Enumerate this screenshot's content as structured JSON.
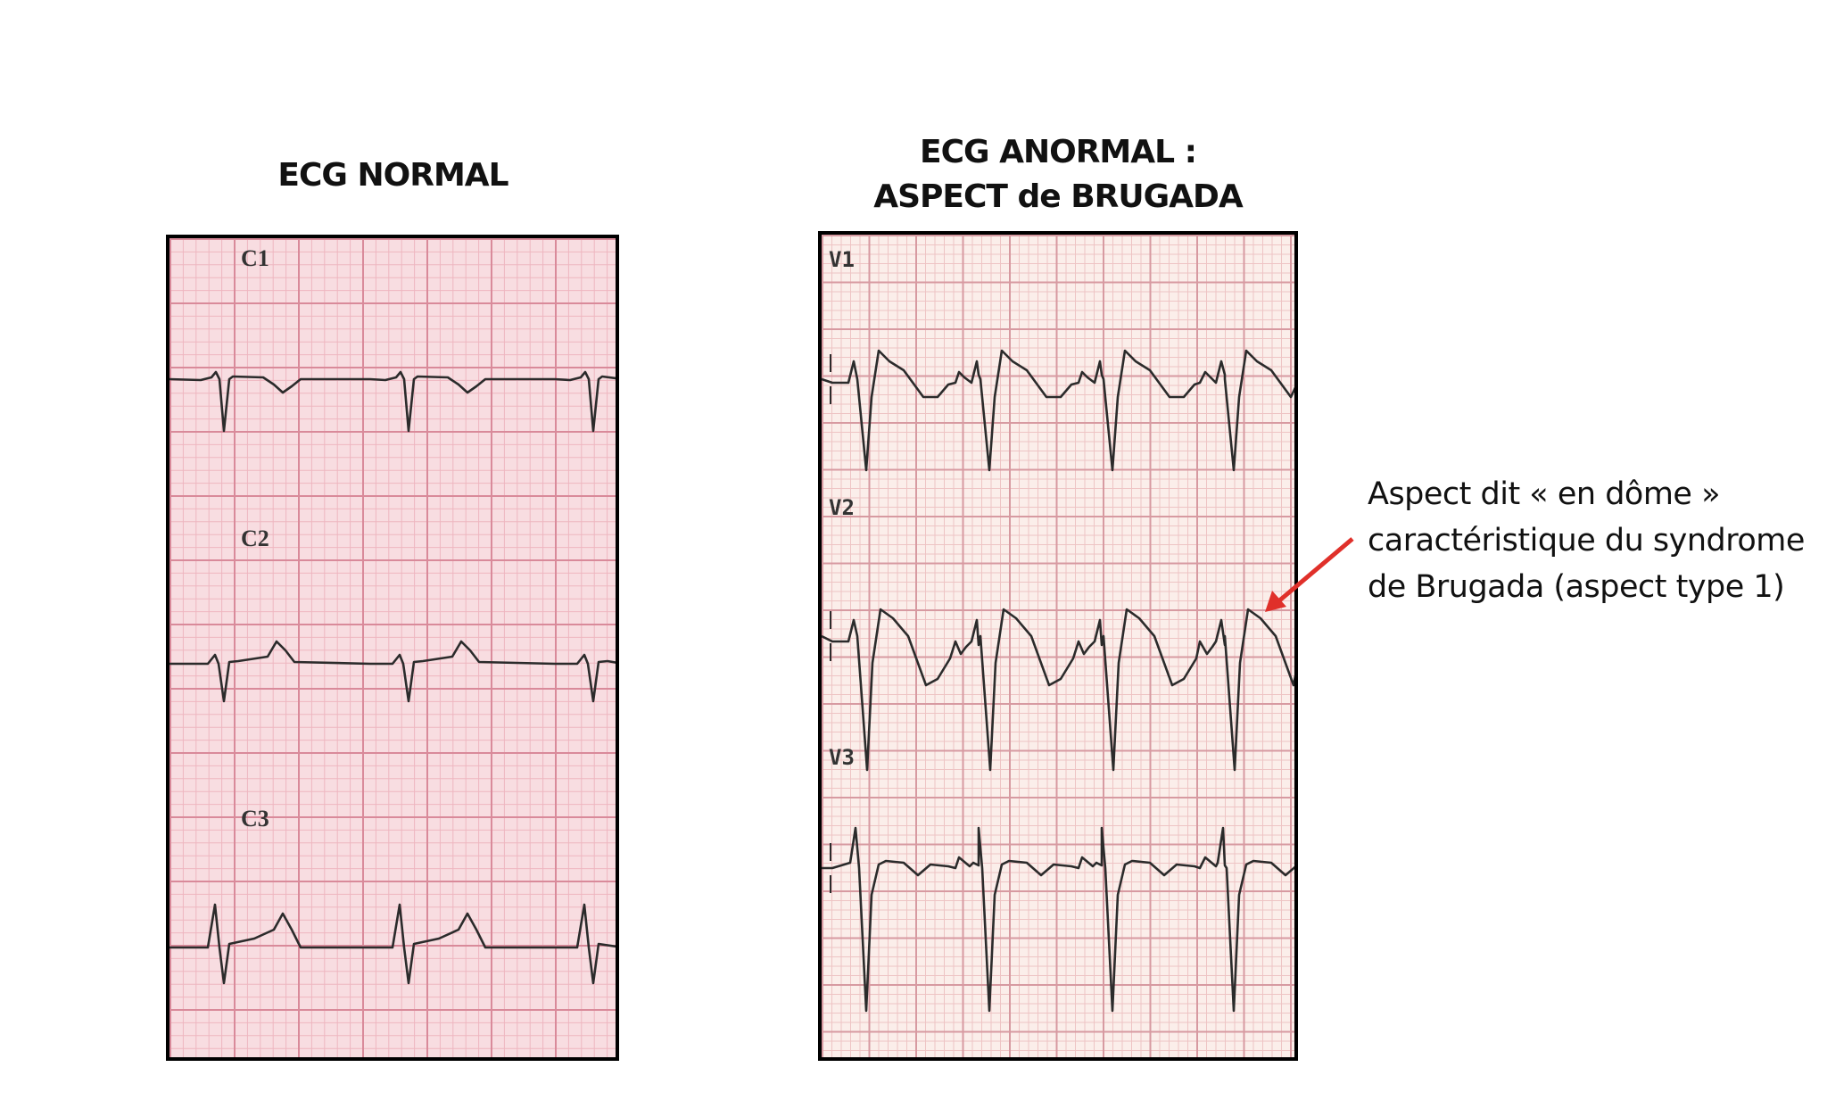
{
  "left": {
    "title": "ECG NORMAL",
    "leads": [
      "C1",
      "C2",
      "C3"
    ]
  },
  "right": {
    "title_line1": "ECG ANORMAL :",
    "title_line2": "ASPECT de BRUGADA",
    "leads": [
      "V1",
      "V2",
      "V3"
    ]
  },
  "annotation": {
    "lines": [
      "Aspect dit « en dôme »",
      "caractéristique du syndrome",
      "de Brugada (aspect type 1)"
    ],
    "arrow_color": "#e0302a"
  },
  "colors": {
    "left_paper": "#f8dde1",
    "left_grid_major": "#d98a9a",
    "left_grid_minor": "#eeb6c0",
    "right_paper": "#fbeeea",
    "right_grid_major": "#d79aa1",
    "right_grid_minor": "#eec4c4",
    "trace": "#2b2b2b"
  }
}
